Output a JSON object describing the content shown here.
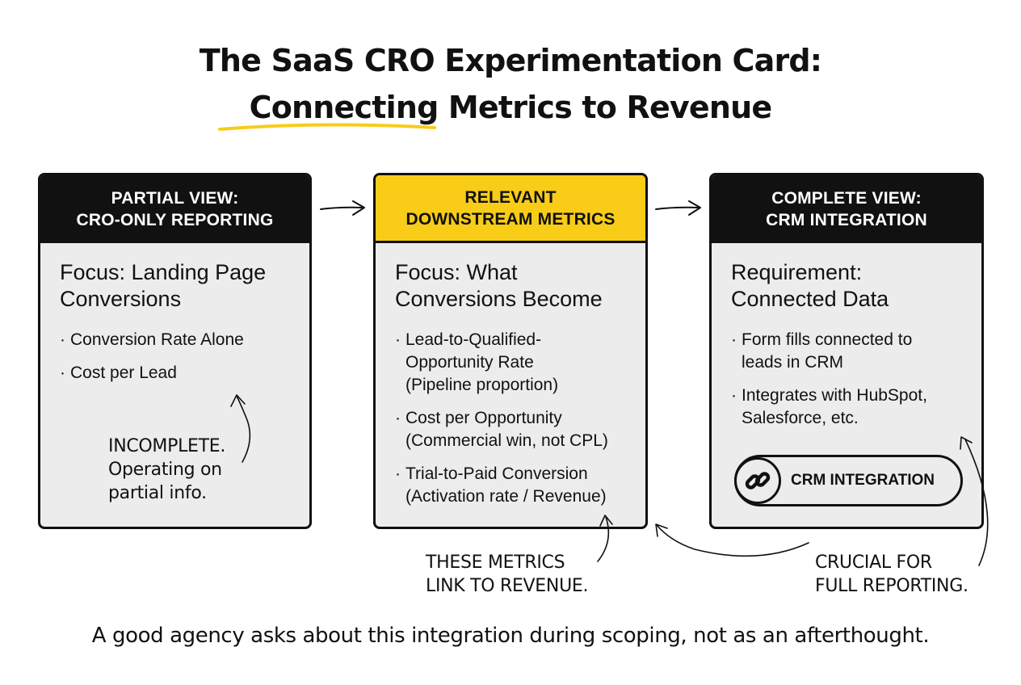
{
  "title": {
    "line1": "The SaaS CRO Experimentation Card:",
    "line2": "Connecting Metrics to Revenue"
  },
  "cards": [
    {
      "header": [
        "PARTIAL VIEW:",
        "CRO-ONLY REPORTING"
      ],
      "focus": [
        "Focus: Landing Page",
        "Conversions"
      ],
      "bullets": [
        [
          "Conversion Rate Alone"
        ],
        [
          "Cost per Lead"
        ]
      ],
      "note": [
        "INCOMPLETE.",
        "Operating on",
        "partial info."
      ]
    },
    {
      "header": [
        "RELEVANT",
        "DOWNSTREAM METRICS"
      ],
      "focus": [
        "Focus: What",
        "Conversions Become"
      ],
      "bullets": [
        [
          "Lead-to-Qualified-",
          "Opportunity Rate",
          "(Pipeline proportion)"
        ],
        [
          "Cost per Opportunity",
          "(Commercial win, not CPL)"
        ],
        [
          "Trial-to-Paid Conversion",
          "(Activation rate / Revenue)"
        ]
      ],
      "note": [
        "THESE METRICS",
        "LINK TO REVENUE."
      ]
    },
    {
      "header": [
        "COMPLETE VIEW:",
        "CRM INTEGRATION"
      ],
      "focus": [
        "Requirement:",
        "Connected Data"
      ],
      "bullets": [
        [
          "Form fills connected to",
          "leads in CRM"
        ],
        [
          "Integrates with HubSpot,",
          "Salesforce, etc."
        ]
      ],
      "badge": "CRM INTEGRATION",
      "badge_icon": "link-icon",
      "note": [
        "CRUCIAL FOR",
        "FULL REPORTING."
      ]
    }
  ],
  "footer": "A good agency asks about this integration during scoping, not as an afterthought.",
  "colors": {
    "accent_yellow": "#f8cc17",
    "header_dark": "#111111",
    "card_bg": "#ececec"
  }
}
